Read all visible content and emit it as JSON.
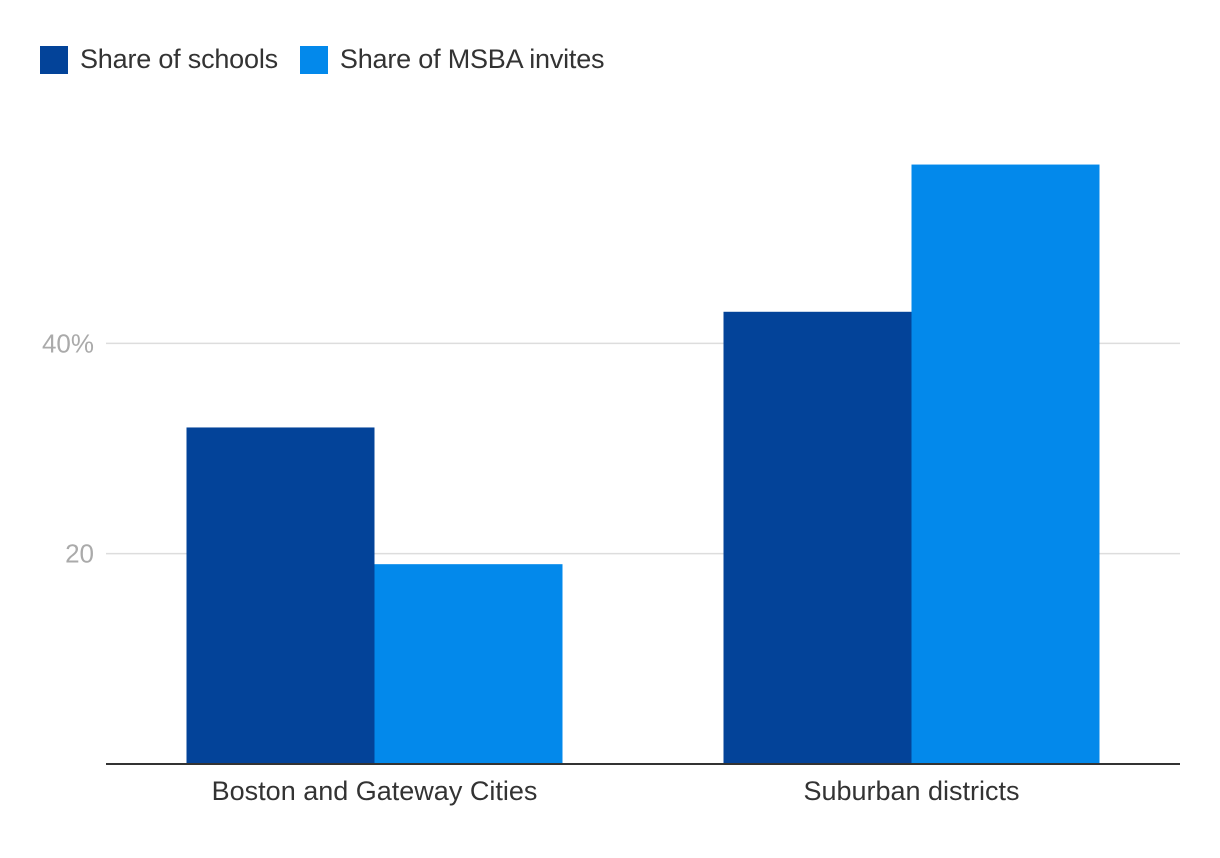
{
  "chart_data": {
    "type": "bar",
    "title": "",
    "xlabel": "",
    "ylabel": "",
    "categories": [
      "Boston and Gateway Cities",
      "Suburban districts"
    ],
    "series": [
      {
        "name": "Share of schools",
        "values": [
          32,
          43
        ],
        "color": "#034399"
      },
      {
        "name": "Share of MSBA invites",
        "values": [
          19,
          57
        ],
        "color": "#0389EB"
      }
    ],
    "ylim": [
      0,
      60
    ],
    "yticks": [
      {
        "value": 20,
        "label": "20"
      },
      {
        "value": 40,
        "label": "40%"
      }
    ],
    "grid": true,
    "legend": "top-left"
  }
}
